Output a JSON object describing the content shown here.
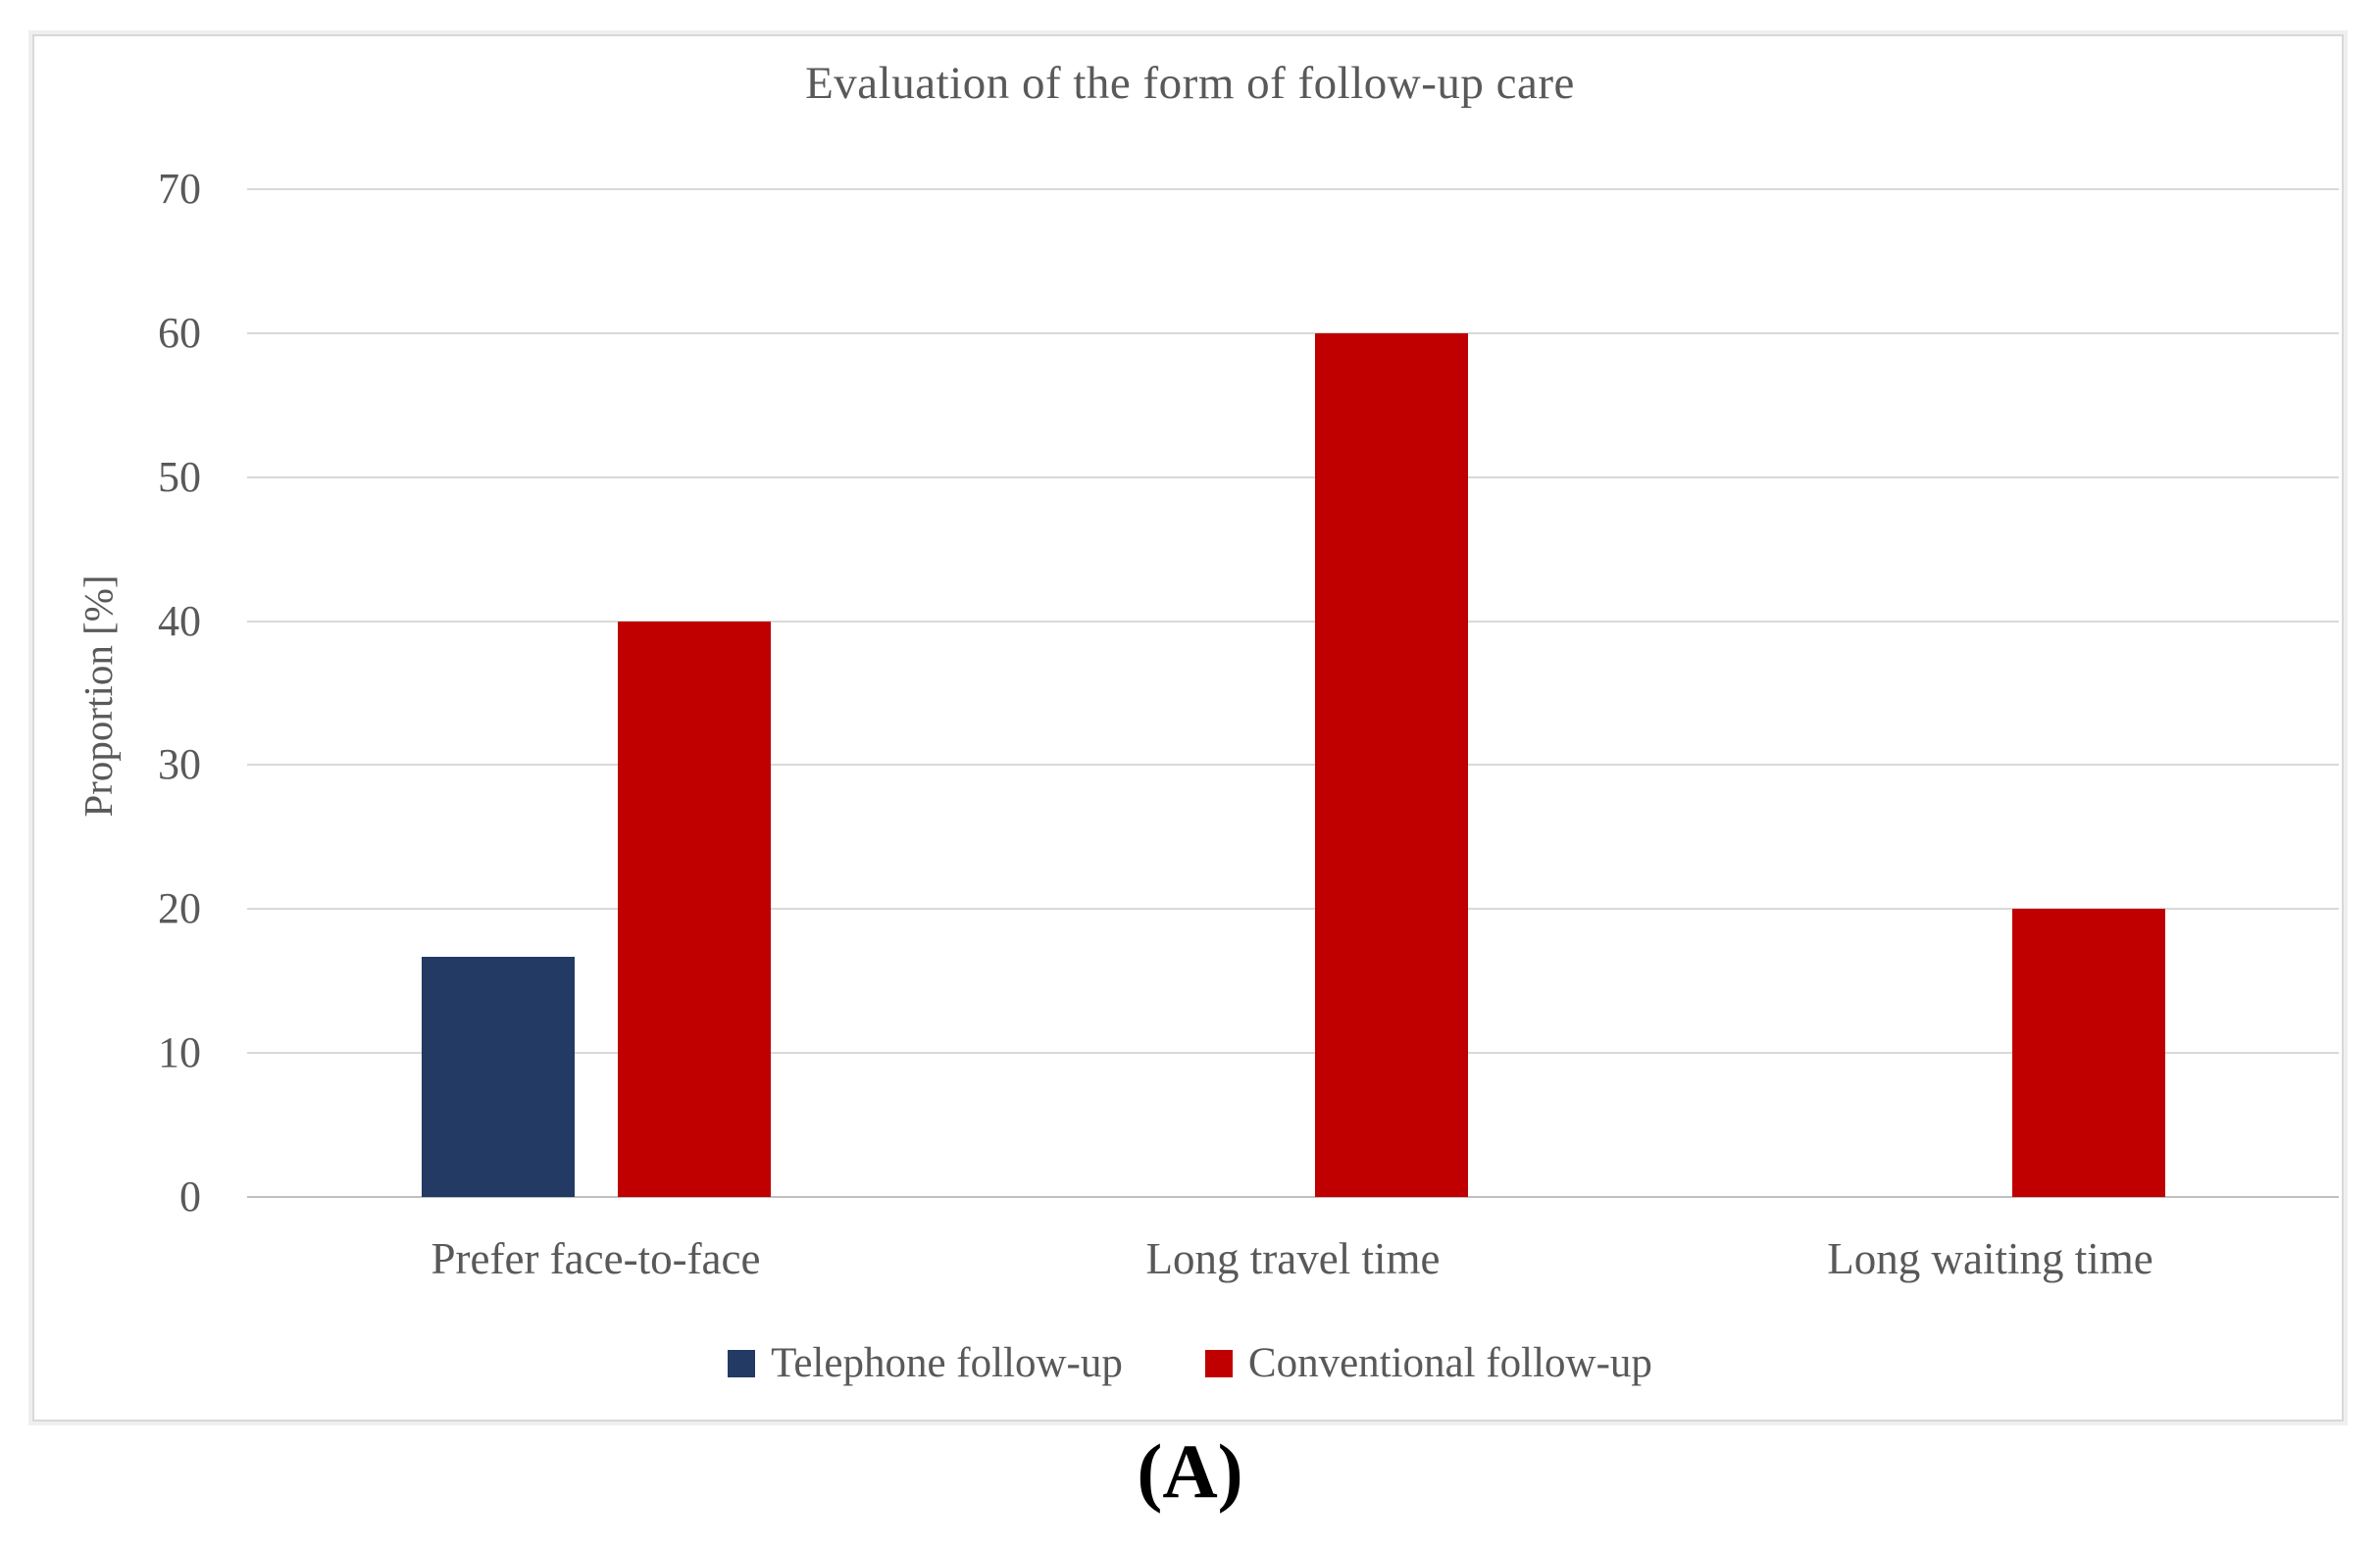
{
  "caption": "(A)",
  "chart_data": {
    "type": "bar",
    "title": "Evaluation of the form of follow-up care",
    "xlabel": "",
    "ylabel": "Proportion [%]",
    "ylim": [
      0,
      70
    ],
    "yticks": [
      0,
      10,
      20,
      30,
      40,
      50,
      60,
      70
    ],
    "grid": true,
    "legend_position": "bottom",
    "categories": [
      "Prefer face-to-face",
      "Long travel time",
      "Long waiting time"
    ],
    "series": [
      {
        "name": "Telephone follow-up",
        "color": "#223A64",
        "values": [
          16.7,
          0,
          0
        ]
      },
      {
        "name": "Conventional follow-up",
        "color": "#C00000",
        "values": [
          40,
          60,
          20
        ]
      }
    ],
    "colors": {
      "grid": "#D9D9D9",
      "baseline": "#BFBFBF",
      "text": "#595959"
    }
  }
}
